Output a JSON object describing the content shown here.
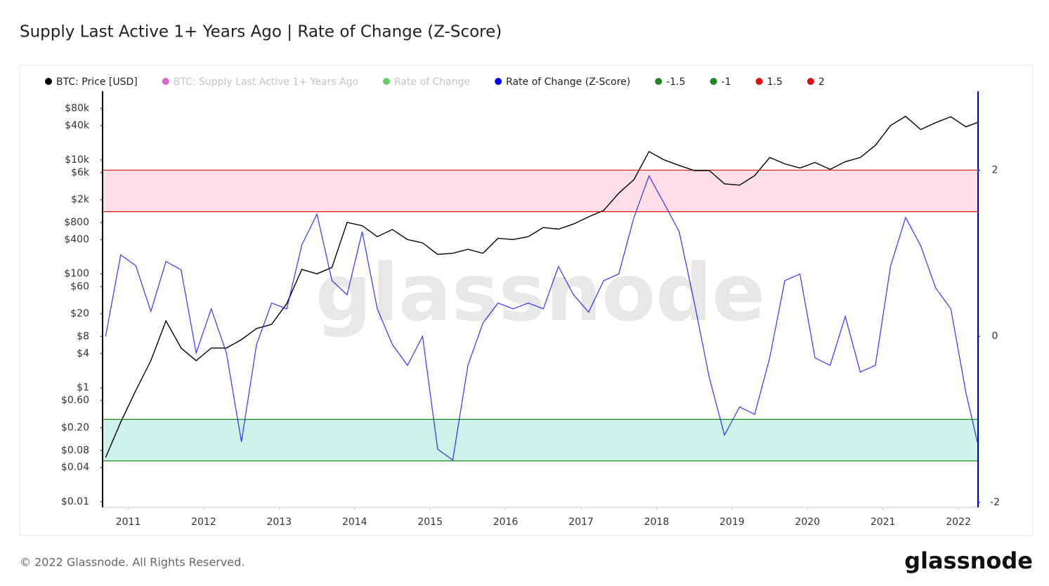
{
  "chart_data": {
    "type": "line",
    "title": "Supply Last Active 1+ Years Ago | Rate of Change (Z-Score)",
    "watermark": "glassnode",
    "footer": "© 2022 Glassnode. All Rights Reserved.",
    "logo": "glassnode",
    "log_scale_y": true,
    "x": [
      2010.7,
      2010.9,
      2011.1,
      2011.3,
      2011.5,
      2011.7,
      2011.9,
      2012.1,
      2012.3,
      2012.5,
      2012.7,
      2012.9,
      2013.1,
      2013.3,
      2013.5,
      2013.7,
      2013.9,
      2014.1,
      2014.3,
      2014.5,
      2014.7,
      2014.9,
      2015.1,
      2015.3,
      2015.5,
      2015.7,
      2015.9,
      2016.1,
      2016.3,
      2016.5,
      2016.7,
      2016.9,
      2017.1,
      2017.3,
      2017.5,
      2017.7,
      2017.9,
      2018.1,
      2018.3,
      2018.5,
      2018.7,
      2018.9,
      2019.1,
      2019.3,
      2019.5,
      2019.7,
      2019.9,
      2020.1,
      2020.3,
      2020.5,
      2020.7,
      2020.9,
      2021.1,
      2021.3,
      2021.5,
      2021.7,
      2021.9,
      2022.1,
      2022.25
    ],
    "xlim": [
      2010.66,
      2022.26
    ],
    "xticks": [
      2011,
      2012,
      2013,
      2014,
      2015,
      2016,
      2017,
      2018,
      2019,
      2020,
      2021,
      2022
    ],
    "ylim": [
      0.008,
      160000
    ],
    "yticks": [
      {
        "value": 0.01,
        "label": "$0.01"
      },
      {
        "value": 0.04,
        "label": "$0.04"
      },
      {
        "value": 0.08,
        "label": "$0.08"
      },
      {
        "value": 0.2,
        "label": "$0.20"
      },
      {
        "value": 0.6,
        "label": "$0.60"
      },
      {
        "value": 1,
        "label": "$1"
      },
      {
        "value": 4,
        "label": "$4"
      },
      {
        "value": 8,
        "label": "$8"
      },
      {
        "value": 20,
        "label": "$20"
      },
      {
        "value": 60,
        "label": "$60"
      },
      {
        "value": 100,
        "label": "$100"
      },
      {
        "value": 400,
        "label": "$400"
      },
      {
        "value": 800,
        "label": "$800"
      },
      {
        "value": 2000,
        "label": "$2k"
      },
      {
        "value": 6000,
        "label": "$6k"
      },
      {
        "value": 10000,
        "label": "$10k"
      },
      {
        "value": 40000,
        "label": "$40k"
      },
      {
        "value": 80000,
        "label": "$80k"
      }
    ],
    "y2lim": [
      -2.06,
      2.95
    ],
    "y2ticks": [
      -2,
      0,
      2
    ],
    "series": [
      {
        "name": "BTC: Price [USD]",
        "color": "#000000",
        "values": [
          0.06,
          0.25,
          0.9,
          3,
          15,
          5,
          3,
          5,
          5,
          7,
          11,
          13,
          30,
          120,
          100,
          130,
          800,
          700,
          450,
          600,
          400,
          350,
          220,
          230,
          270,
          230,
          420,
          400,
          450,
          650,
          610,
          750,
          1000,
          1300,
          2600,
          4500,
          14000,
          10000,
          8000,
          6500,
          6500,
          3800,
          3600,
          5300,
          11000,
          8500,
          7200,
          9000,
          6800,
          9300,
          11000,
          18000,
          40000,
          58000,
          34000,
          45000,
          57000,
          38000,
          45000
        ]
      },
      {
        "name": "Rate of Change (Z-Score)",
        "color": "#0000ff",
        "axis": "y2",
        "values": [
          0,
          0.98,
          0.85,
          0.3,
          0.9,
          0.8,
          -0.2,
          0.33,
          -0.2,
          -1.27,
          -0.1,
          0.4,
          0.33,
          1.1,
          1.47,
          0.67,
          0.5,
          1.26,
          0.33,
          -0.1,
          -0.35,
          0,
          -1.36,
          -1.49,
          -0.35,
          0.16,
          0.4,
          0.33,
          0.4,
          0.33,
          0.84,
          0.5,
          0.29,
          0.67,
          0.75,
          1.43,
          1.93,
          1.6,
          1.26,
          0.41,
          -0.5,
          -1.19,
          -0.85,
          -0.94,
          -0.26,
          0.67,
          0.75,
          -0.26,
          -0.35,
          0.24,
          -0.43,
          -0.35,
          0.84,
          1.43,
          1.09,
          0.58,
          0.33,
          -0.68,
          -1.27
        ]
      }
    ],
    "hidden_series": [
      {
        "name": "BTC: Supply Last Active 1+ Years Ago",
        "color": "#d63cc0"
      },
      {
        "name": "Rate of Change",
        "color": "#3cc43c"
      }
    ],
    "thresholds": [
      {
        "name": "-1.5",
        "value": -1.5,
        "color": "#1a8a1a"
      },
      {
        "name": "-1",
        "value": -1,
        "color": "#1a8a1a"
      },
      {
        "name": "1.5",
        "value": 1.5,
        "color": "#e01010"
      },
      {
        "name": "2",
        "value": 2,
        "color": "#e01010"
      }
    ],
    "band_fills": [
      "#c8f2e8",
      "#ffdbe4"
    ]
  }
}
